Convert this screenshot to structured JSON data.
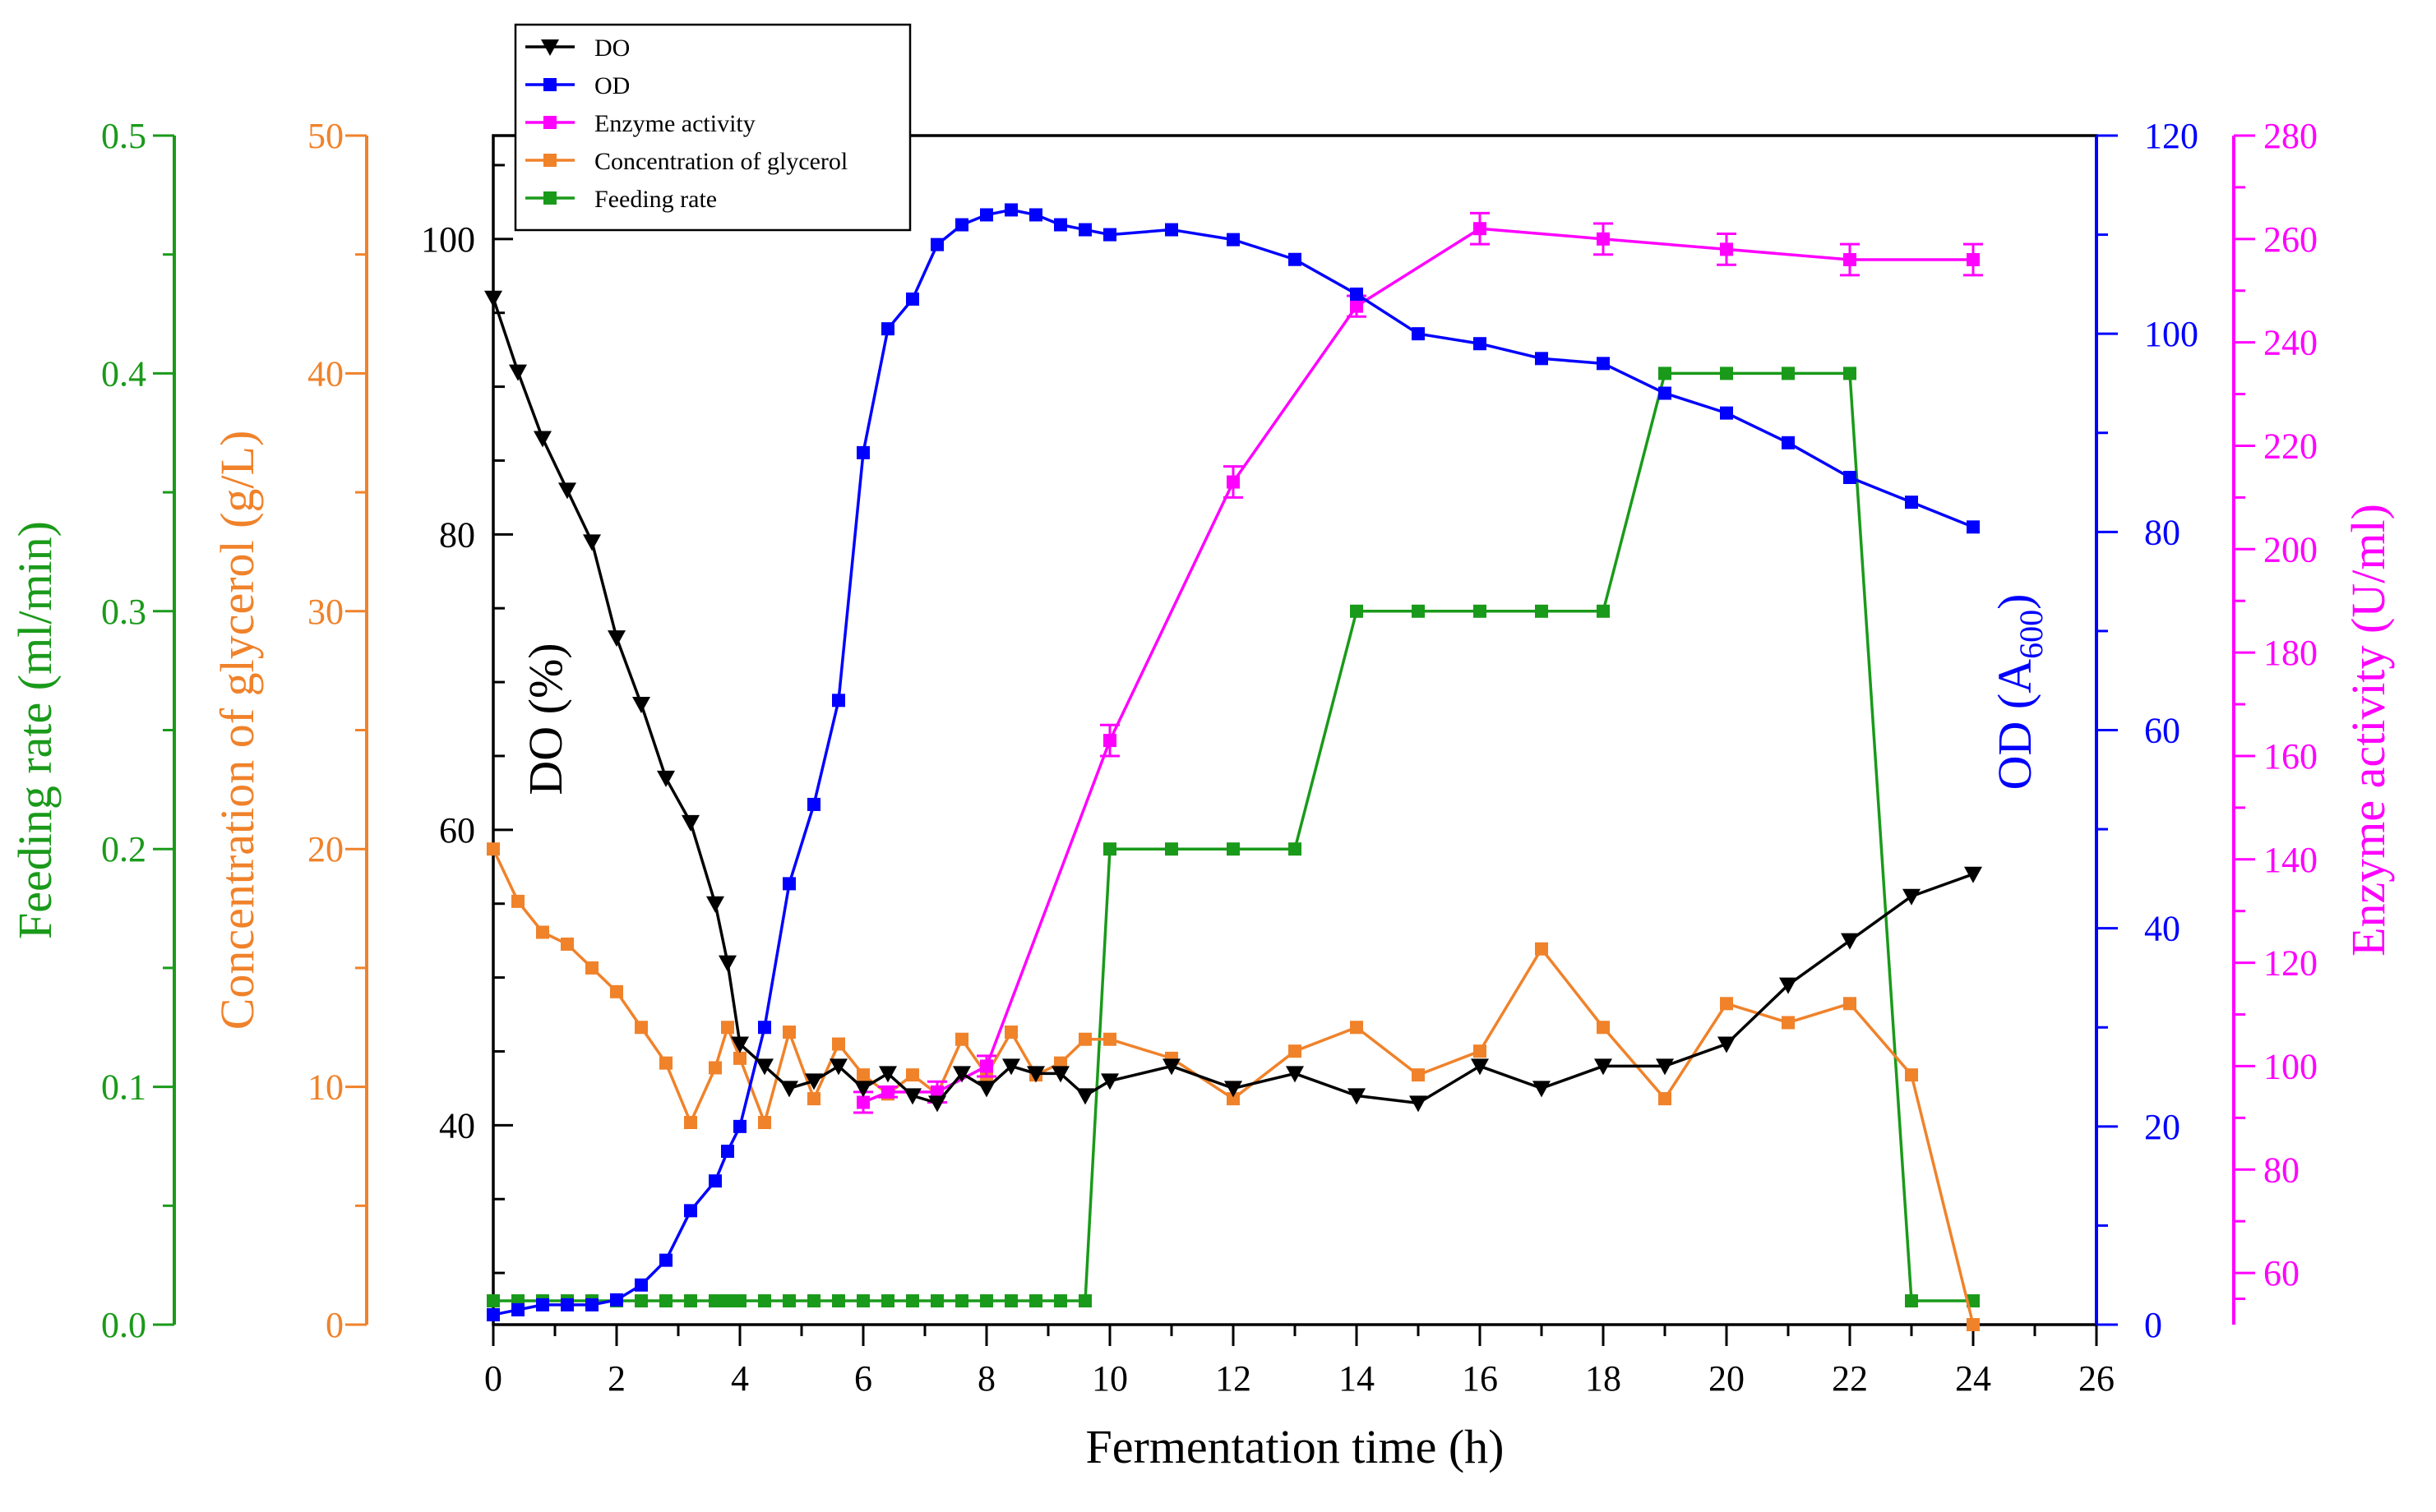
{
  "chart_data": {
    "type": "line",
    "x_axis": {
      "label": "Fermentation time (h)",
      "range": [
        0,
        26
      ],
      "ticks": [
        "0",
        "2",
        "4",
        "6",
        "8",
        "10",
        "12",
        "14",
        "16",
        "18",
        "20",
        "22",
        "24",
        "26"
      ]
    },
    "axes": {
      "feeding": {
        "label": "Feeding rate (ml/min)",
        "range": [
          0,
          0.5
        ],
        "ticks": [
          "0.0",
          "0.1",
          "0.2",
          "0.3",
          "0.4",
          "0.5"
        ],
        "color": "#1a9a1a"
      },
      "glycerol": {
        "label": "Concentration of glycerol (g/L)",
        "range": [
          0,
          50
        ],
        "ticks": [
          "0",
          "10",
          "20",
          "30",
          "40",
          "50"
        ],
        "color": "#f0822a"
      },
      "do": {
        "label_main": "DO (%)",
        "range": [
          26.5,
          107
        ],
        "ticks": [
          "40",
          "60",
          "80",
          "100"
        ],
        "color": "#000000"
      },
      "od": {
        "label_prefix": "OD (A",
        "label_sub": "600",
        "label_suffix": ")",
        "range": [
          0,
          120
        ],
        "ticks": [
          "0",
          "20",
          "40",
          "60",
          "80",
          "100",
          "120"
        ],
        "color": "#0000ff"
      },
      "enzyme": {
        "label": "Enzyme activity (U/ml)",
        "range": [
          50,
          280
        ],
        "ticks": [
          "60",
          "80",
          "100",
          "120",
          "140",
          "160",
          "180",
          "200",
          "220",
          "240",
          "260",
          "280"
        ],
        "color": "#ff00ff"
      }
    },
    "legend": {
      "placement": "top-left",
      "entries": [
        "DO",
        "OD",
        "Enzyme activity",
        "Concentration of glycerol",
        "Feeding rate"
      ]
    },
    "series": [
      {
        "name": "DO",
        "axis": "do",
        "color": "#000000",
        "marker": "triangle-down",
        "x": [
          0,
          0.4,
          0.8,
          1.2,
          1.6,
          2,
          2.4,
          2.8,
          3.2,
          3.6,
          3.8,
          4,
          4.4,
          4.8,
          5.2,
          5.6,
          6,
          6.4,
          6.8,
          7.2,
          7.6,
          8,
          8.4,
          8.8,
          9.2,
          9.6,
          10,
          11,
          12,
          13,
          14,
          15,
          16,
          17,
          18,
          19,
          20,
          21,
          22,
          23,
          24
        ],
        "y": [
          96,
          91,
          86.5,
          83,
          79.5,
          73,
          68.5,
          63.5,
          60.5,
          55,
          51,
          45.5,
          44,
          42.5,
          43,
          44,
          42.5,
          43.5,
          42,
          41.5,
          43.5,
          42.5,
          44,
          43.5,
          43.5,
          42,
          43,
          44,
          42.5,
          43.5,
          42,
          41.5,
          44,
          42.5,
          44,
          44,
          45.5,
          49.5,
          52.5,
          55.5,
          57
        ]
      },
      {
        "name": "OD",
        "axis": "od",
        "color": "#0000ff",
        "marker": "square",
        "x": [
          0,
          0.4,
          0.8,
          1.2,
          1.6,
          2,
          2.4,
          2.8,
          3.2,
          3.6,
          3.8,
          4,
          4.4,
          4.8,
          5.2,
          5.6,
          6,
          6.4,
          6.8,
          7.2,
          7.6,
          8,
          8.4,
          8.8,
          9.2,
          9.6,
          10,
          11,
          12,
          13,
          14,
          15,
          16,
          17,
          18,
          19,
          20,
          21,
          22,
          23,
          24
        ],
        "y": [
          1,
          1.5,
          2,
          2,
          2,
          2.5,
          4,
          6.5,
          11.5,
          14.5,
          17.5,
          20,
          30,
          44.5,
          52.5,
          63,
          88,
          100.5,
          103.5,
          109,
          111,
          112,
          112.5,
          112,
          111,
          110.5,
          110,
          110.5,
          109.5,
          107.5,
          104,
          100,
          99,
          97.5,
          97,
          94,
          92,
          89,
          85.5,
          83,
          80.5
        ]
      },
      {
        "name": "Enzyme activity",
        "axis": "enzyme",
        "color": "#ff00ff",
        "marker": "square",
        "error_bars": true,
        "x": [
          6,
          6.4,
          7.2,
          8,
          10,
          12,
          14,
          16,
          18,
          20,
          22,
          24
        ],
        "y": [
          93,
          95,
          95,
          100,
          163,
          213,
          247,
          262,
          260,
          258,
          256,
          256
        ],
        "err": [
          2,
          1,
          2,
          2,
          3,
          3,
          2,
          3,
          3,
          3,
          3,
          3
        ]
      },
      {
        "name": "Concentration of glycerol",
        "axis": "glycerol",
        "color": "#f0822a",
        "marker": "square",
        "x": [
          0,
          0.4,
          0.8,
          1.2,
          1.6,
          2,
          2.4,
          2.8,
          3.2,
          3.6,
          3.8,
          4,
          4.4,
          4.8,
          5.2,
          5.6,
          6,
          6.4,
          6.8,
          7.2,
          7.6,
          8,
          8.4,
          8.8,
          9.2,
          9.6,
          10,
          11,
          12,
          13,
          14,
          15,
          16,
          17,
          18,
          19,
          20,
          21,
          22,
          23,
          24
        ],
        "y": [
          20,
          17.8,
          16.5,
          16,
          15,
          14,
          12.5,
          11,
          8.5,
          10.8,
          12.5,
          11.2,
          8.5,
          12.3,
          9.5,
          11.8,
          10.5,
          9.7,
          10.5,
          9.7,
          12,
          10.5,
          12.3,
          10.5,
          11,
          12,
          12,
          11.2,
          9.5,
          11.5,
          12.5,
          10.5,
          11.5,
          15.8,
          12.5,
          9.5,
          13.5,
          12.7,
          13.5,
          10.5,
          0
        ]
      },
      {
        "name": "Feeding rate",
        "axis": "feeding",
        "color": "#1a9a1a",
        "marker": "square",
        "x": [
          0,
          0.4,
          0.8,
          1.2,
          1.6,
          2,
          2.4,
          2.8,
          3.2,
          3.6,
          3.8,
          4,
          4.4,
          4.8,
          5.2,
          5.6,
          6,
          6.4,
          6.8,
          7.2,
          7.6,
          8,
          8.4,
          8.8,
          9.2,
          9.6,
          10,
          11,
          12,
          13,
          14,
          15,
          16,
          17,
          18,
          19,
          20,
          21,
          22,
          23,
          24
        ],
        "y": [
          0.01,
          0.01,
          0.01,
          0.01,
          0.01,
          0.01,
          0.01,
          0.01,
          0.01,
          0.01,
          0.01,
          0.01,
          0.01,
          0.01,
          0.01,
          0.01,
          0.01,
          0.01,
          0.01,
          0.01,
          0.01,
          0.01,
          0.01,
          0.01,
          0.01,
          0.01,
          0.2,
          0.2,
          0.2,
          0.2,
          0.3,
          0.3,
          0.3,
          0.3,
          0.3,
          0.4,
          0.4,
          0.4,
          0.4,
          0.01,
          0.01
        ]
      }
    ]
  }
}
